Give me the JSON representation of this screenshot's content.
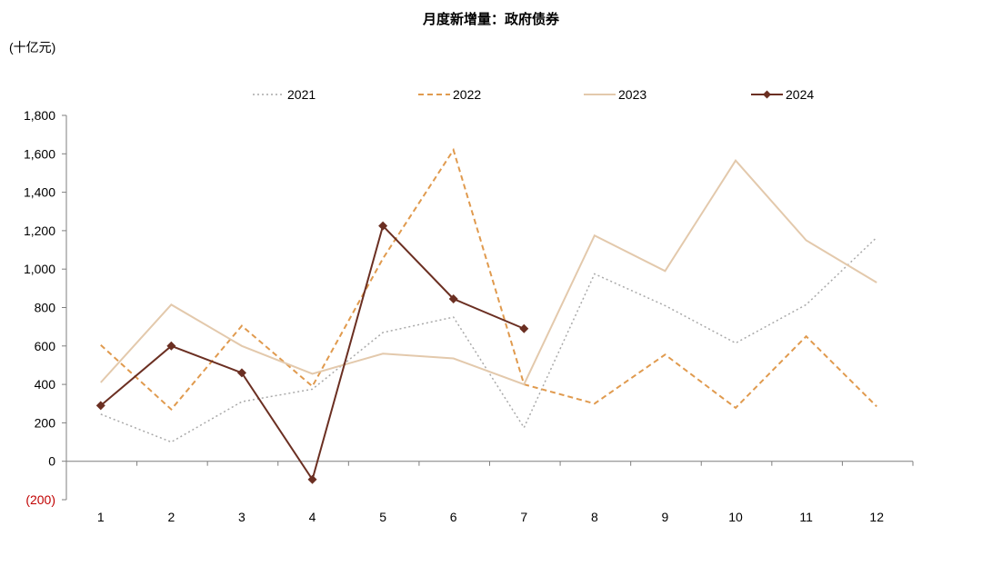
{
  "chart_data": {
    "type": "line",
    "title": "月度新增量：政府债券",
    "unit_label": "(十亿元)",
    "categories": [
      "1",
      "2",
      "3",
      "4",
      "5",
      "6",
      "7",
      "8",
      "9",
      "10",
      "11",
      "12"
    ],
    "ylim": [
      -200,
      1800
    ],
    "y_ticks": [
      -200,
      0,
      200,
      400,
      600,
      800,
      1000,
      1200,
      1400,
      1600,
      1800
    ],
    "y_tick_labels": [
      "(200)",
      "0",
      "200",
      "400",
      "600",
      "800",
      "1,000",
      "1,200",
      "1,400",
      "1,600",
      "1,800"
    ],
    "negative_tick_color": "#c00000",
    "grid": false,
    "legend_position": "top",
    "series": [
      {
        "name": "2021",
        "color": "#a9a9a9",
        "style": "dotted",
        "marker": "none",
        "values": [
          245,
          100,
          310,
          375,
          670,
          750,
          175,
          975,
          810,
          615,
          815,
          1165
        ]
      },
      {
        "name": "2022",
        "color": "#e09a4e",
        "style": "dashed",
        "marker": "none",
        "values": [
          605,
          270,
          705,
          390,
          1055,
          1620,
          400,
          300,
          555,
          278,
          650,
          285
        ]
      },
      {
        "name": "2023",
        "color": "#e3c9ac",
        "style": "solid",
        "marker": "none",
        "values": [
          410,
          815,
          600,
          455,
          560,
          535,
          400,
          1175,
          990,
          1565,
          1150,
          930
        ]
      },
      {
        "name": "2024",
        "color": "#6b2f22",
        "style": "solid",
        "marker": "diamond",
        "values": [
          290,
          600,
          460,
          -95,
          1225,
          845,
          690,
          null,
          null,
          null,
          null,
          null
        ]
      }
    ]
  }
}
